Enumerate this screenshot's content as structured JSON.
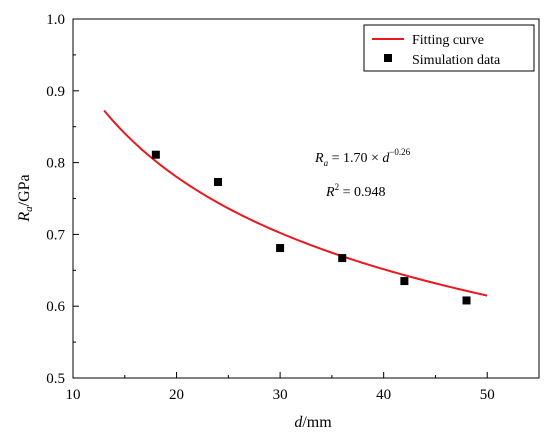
{
  "chart_data": {
    "type": "scatter",
    "title": "",
    "xlabel_main": "d",
    "xlabel_unit": "/mm",
    "ylabel_main": "R",
    "ylabel_sub": "a",
    "ylabel_unit": "/GPa",
    "xlim": [
      10,
      55
    ],
    "ylim": [
      0.5,
      1.0
    ],
    "x_ticks": [
      10,
      20,
      30,
      40,
      50
    ],
    "y_ticks": [
      0.5,
      0.6,
      0.7,
      0.8,
      0.9,
      1.0
    ],
    "x_tick_labels": [
      "10",
      "20",
      "30",
      "40",
      "50"
    ],
    "y_tick_labels": [
      "0.5",
      "0.6",
      "0.7",
      "0.8",
      "0.9",
      "1.0"
    ],
    "grid": false,
    "legend_position": "top-right",
    "series": [
      {
        "name": "Fitting curve",
        "kind": "line",
        "color": "#e8191f",
        "x_range": [
          13,
          50
        ],
        "formula": {
          "a": 1.7,
          "b": -0.26
        }
      },
      {
        "name": "Simulation data",
        "kind": "scatter",
        "color": "#000000",
        "marker": "square",
        "x": [
          18,
          24,
          30,
          36,
          42,
          48
        ],
        "y": [
          0.811,
          0.773,
          0.681,
          0.667,
          0.635,
          0.608
        ]
      }
    ],
    "annotations": {
      "equation": {
        "lhs_main": "R",
        "lhs_sub": "a",
        "rhs_coef": " = 1.70 × ",
        "rhs_var": "d",
        "rhs_exp": "−0.26"
      },
      "r2": {
        "lhs_main": "R",
        "lhs_sup": "2",
        "rhs": " = 0.948"
      }
    }
  }
}
